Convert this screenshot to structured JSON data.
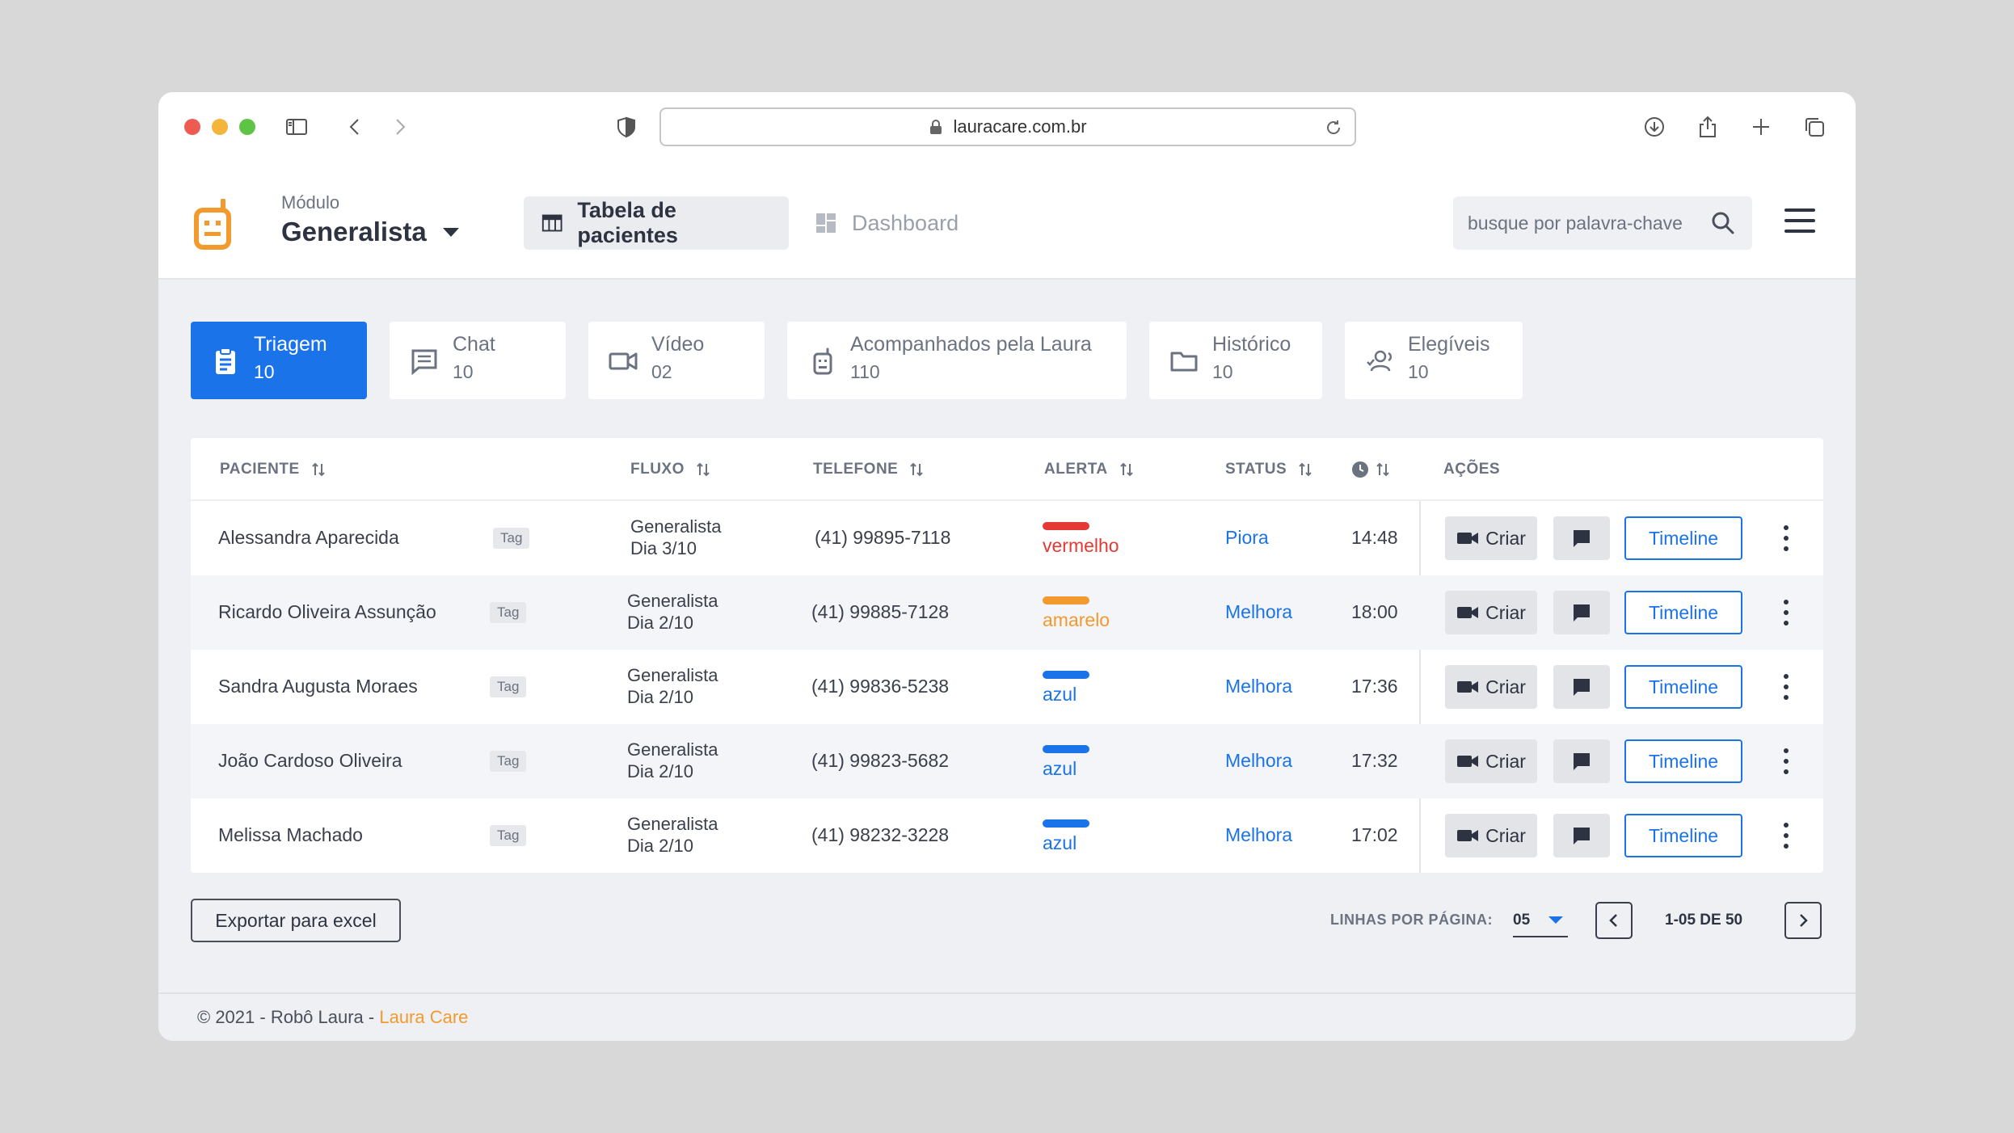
{
  "browser": {
    "url": "lauracare.com.br"
  },
  "header": {
    "module_label": "Módulo",
    "module_value": "Generalista",
    "tabs": [
      {
        "label": "Tabela de pacientes",
        "icon": "table-icon",
        "active": true
      },
      {
        "label": "Dashboard",
        "icon": "dashboard-icon",
        "active": false
      }
    ],
    "search_placeholder": "busque por palavra-chave"
  },
  "filters": [
    {
      "label": "Triagem",
      "count": "10",
      "icon": "clipboard-icon",
      "active": true
    },
    {
      "label": "Chat",
      "count": "10",
      "icon": "chat-icon",
      "active": false
    },
    {
      "label": "Vídeo",
      "count": "02",
      "icon": "video-icon",
      "active": false
    },
    {
      "label": "Acompanhados pela Laura",
      "count": "110",
      "icon": "robot-icon",
      "active": false
    },
    {
      "label": "Histórico",
      "count": "10",
      "icon": "folder-icon",
      "active": false
    },
    {
      "label": "Elegíveis",
      "count": "10",
      "icon": "users-icon",
      "active": false
    }
  ],
  "table": {
    "columns": {
      "paciente": "PACIENTE",
      "fluxo": "FLUXO",
      "telefone": "TELEFONE",
      "alerta": "ALERTA",
      "status": "STATUS",
      "acoes": "AÇÕES"
    },
    "rows": [
      {
        "name": "Alessandra Aparecida",
        "tag": "Tag",
        "fluxo_line1": "Generalista",
        "fluxo_line2": "Dia 3/10",
        "phone": "(41) 99895-7118",
        "alert": "vermelho",
        "alert_color": "#e53935",
        "status": "Piora",
        "time": "14:48"
      },
      {
        "name": "Ricardo Oliveira Assunção",
        "tag": "Tag",
        "fluxo_line1": "Generalista",
        "fluxo_line2": "Dia 2/10",
        "phone": "(41) 99885-7128",
        "alert": "amarelo",
        "alert_color": "#f29a2e",
        "status": "Melhora",
        "time": "18:00"
      },
      {
        "name": "Sandra Augusta Moraes",
        "tag": "Tag",
        "fluxo_line1": "Generalista",
        "fluxo_line2": "Dia 2/10",
        "phone": "(41) 99836-5238",
        "alert": "azul",
        "alert_color": "#1a73e8",
        "status": "Melhora",
        "time": "17:36"
      },
      {
        "name": "João Cardoso Oliveira",
        "tag": "Tag",
        "fluxo_line1": "Generalista",
        "fluxo_line2": "Dia 2/10",
        "phone": "(41) 99823-5682",
        "alert": "azul",
        "alert_color": "#1a73e8",
        "status": "Melhora",
        "time": "17:32"
      },
      {
        "name": "Melissa Machado",
        "tag": "Tag",
        "fluxo_line1": "Generalista",
        "fluxo_line2": "Dia 2/10",
        "phone": "(41) 98232-3228",
        "alert": "azul",
        "alert_color": "#1a73e8",
        "status": "Melhora",
        "time": "17:02"
      }
    ],
    "actions": {
      "criar_label": "Criar",
      "timeline_label": "Timeline"
    }
  },
  "footer": {
    "export_label": "Exportar para excel",
    "lines_per_page_label": "LINHAS POR PÁGINA:",
    "lines_per_page_value": "05",
    "pagination_info": "1-05 DE 50",
    "copyright_prefix": "© 2021 - Robô Laura - ",
    "copyright_brand": "Laura Care"
  },
  "colors": {
    "primary": "#1a73e8",
    "brand_orange": "#f29a2e",
    "alert_red": "#e53935"
  }
}
